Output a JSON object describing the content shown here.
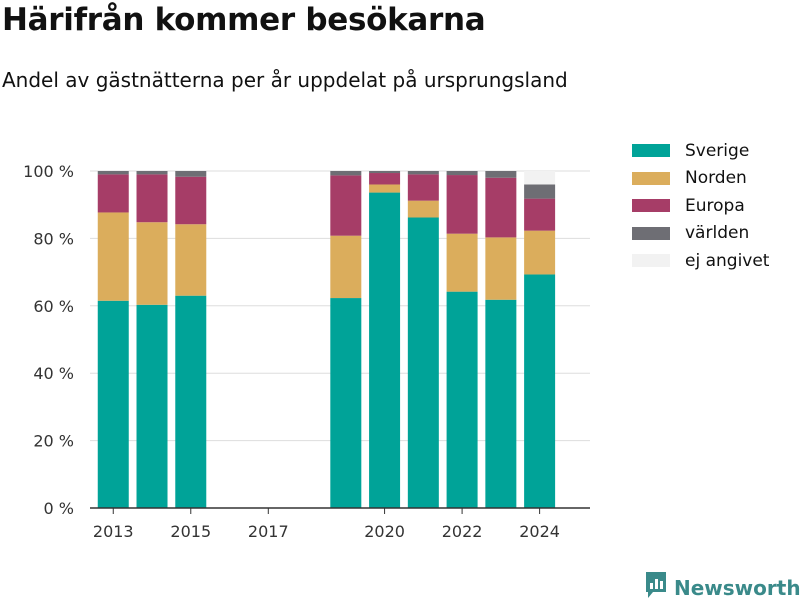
{
  "title": "Härifrån kommer besökarna",
  "subtitle": "Andel av gästnätterna per år uppdelat på ursprungsland",
  "brand": {
    "name": "Newsworthy"
  },
  "colors": {
    "Sverige": "#00a398",
    "Norden": "#dbad5c",
    "Europa": "#a63d67",
    "världen": "#6e6e74",
    "ej angivet": "#f2f2f2",
    "grid": "#dddddd",
    "axis": "#333333"
  },
  "chart_data": {
    "type": "bar",
    "stacked": true,
    "categories": [
      "2013",
      "2014",
      "2015",
      "2019",
      "2020",
      "2021",
      "2022",
      "2023",
      "2024"
    ],
    "x_ticks": [
      "2013",
      "2015",
      "2017",
      "2020",
      "2022",
      "2024"
    ],
    "y_ticks": [
      "0 %",
      "20 %",
      "40 %",
      "60 %",
      "80 %",
      "100 %"
    ],
    "ylim": [
      0,
      100
    ],
    "grid": true,
    "legend_position": "right",
    "series": [
      {
        "name": "Sverige",
        "values": [
          61.5,
          60.3,
          63,
          62.3,
          93.6,
          86.2,
          64.2,
          61.8,
          69.3
        ]
      },
      {
        "name": "Norden",
        "values": [
          26.2,
          24.5,
          21.2,
          18.5,
          2.4,
          5,
          17.2,
          18.5,
          13
        ]
      },
      {
        "name": "Europa",
        "values": [
          11.3,
          14.2,
          14.1,
          17.9,
          3.4,
          7.8,
          17.4,
          17.7,
          9.5
        ]
      },
      {
        "name": "världen",
        "values": [
          1,
          1,
          1.7,
          1.3,
          0.6,
          1,
          1.2,
          2,
          4.2
        ]
      },
      {
        "name": "ej angivet",
        "values": [
          0,
          0,
          0,
          0,
          0,
          0,
          0,
          0,
          4
        ]
      }
    ]
  }
}
